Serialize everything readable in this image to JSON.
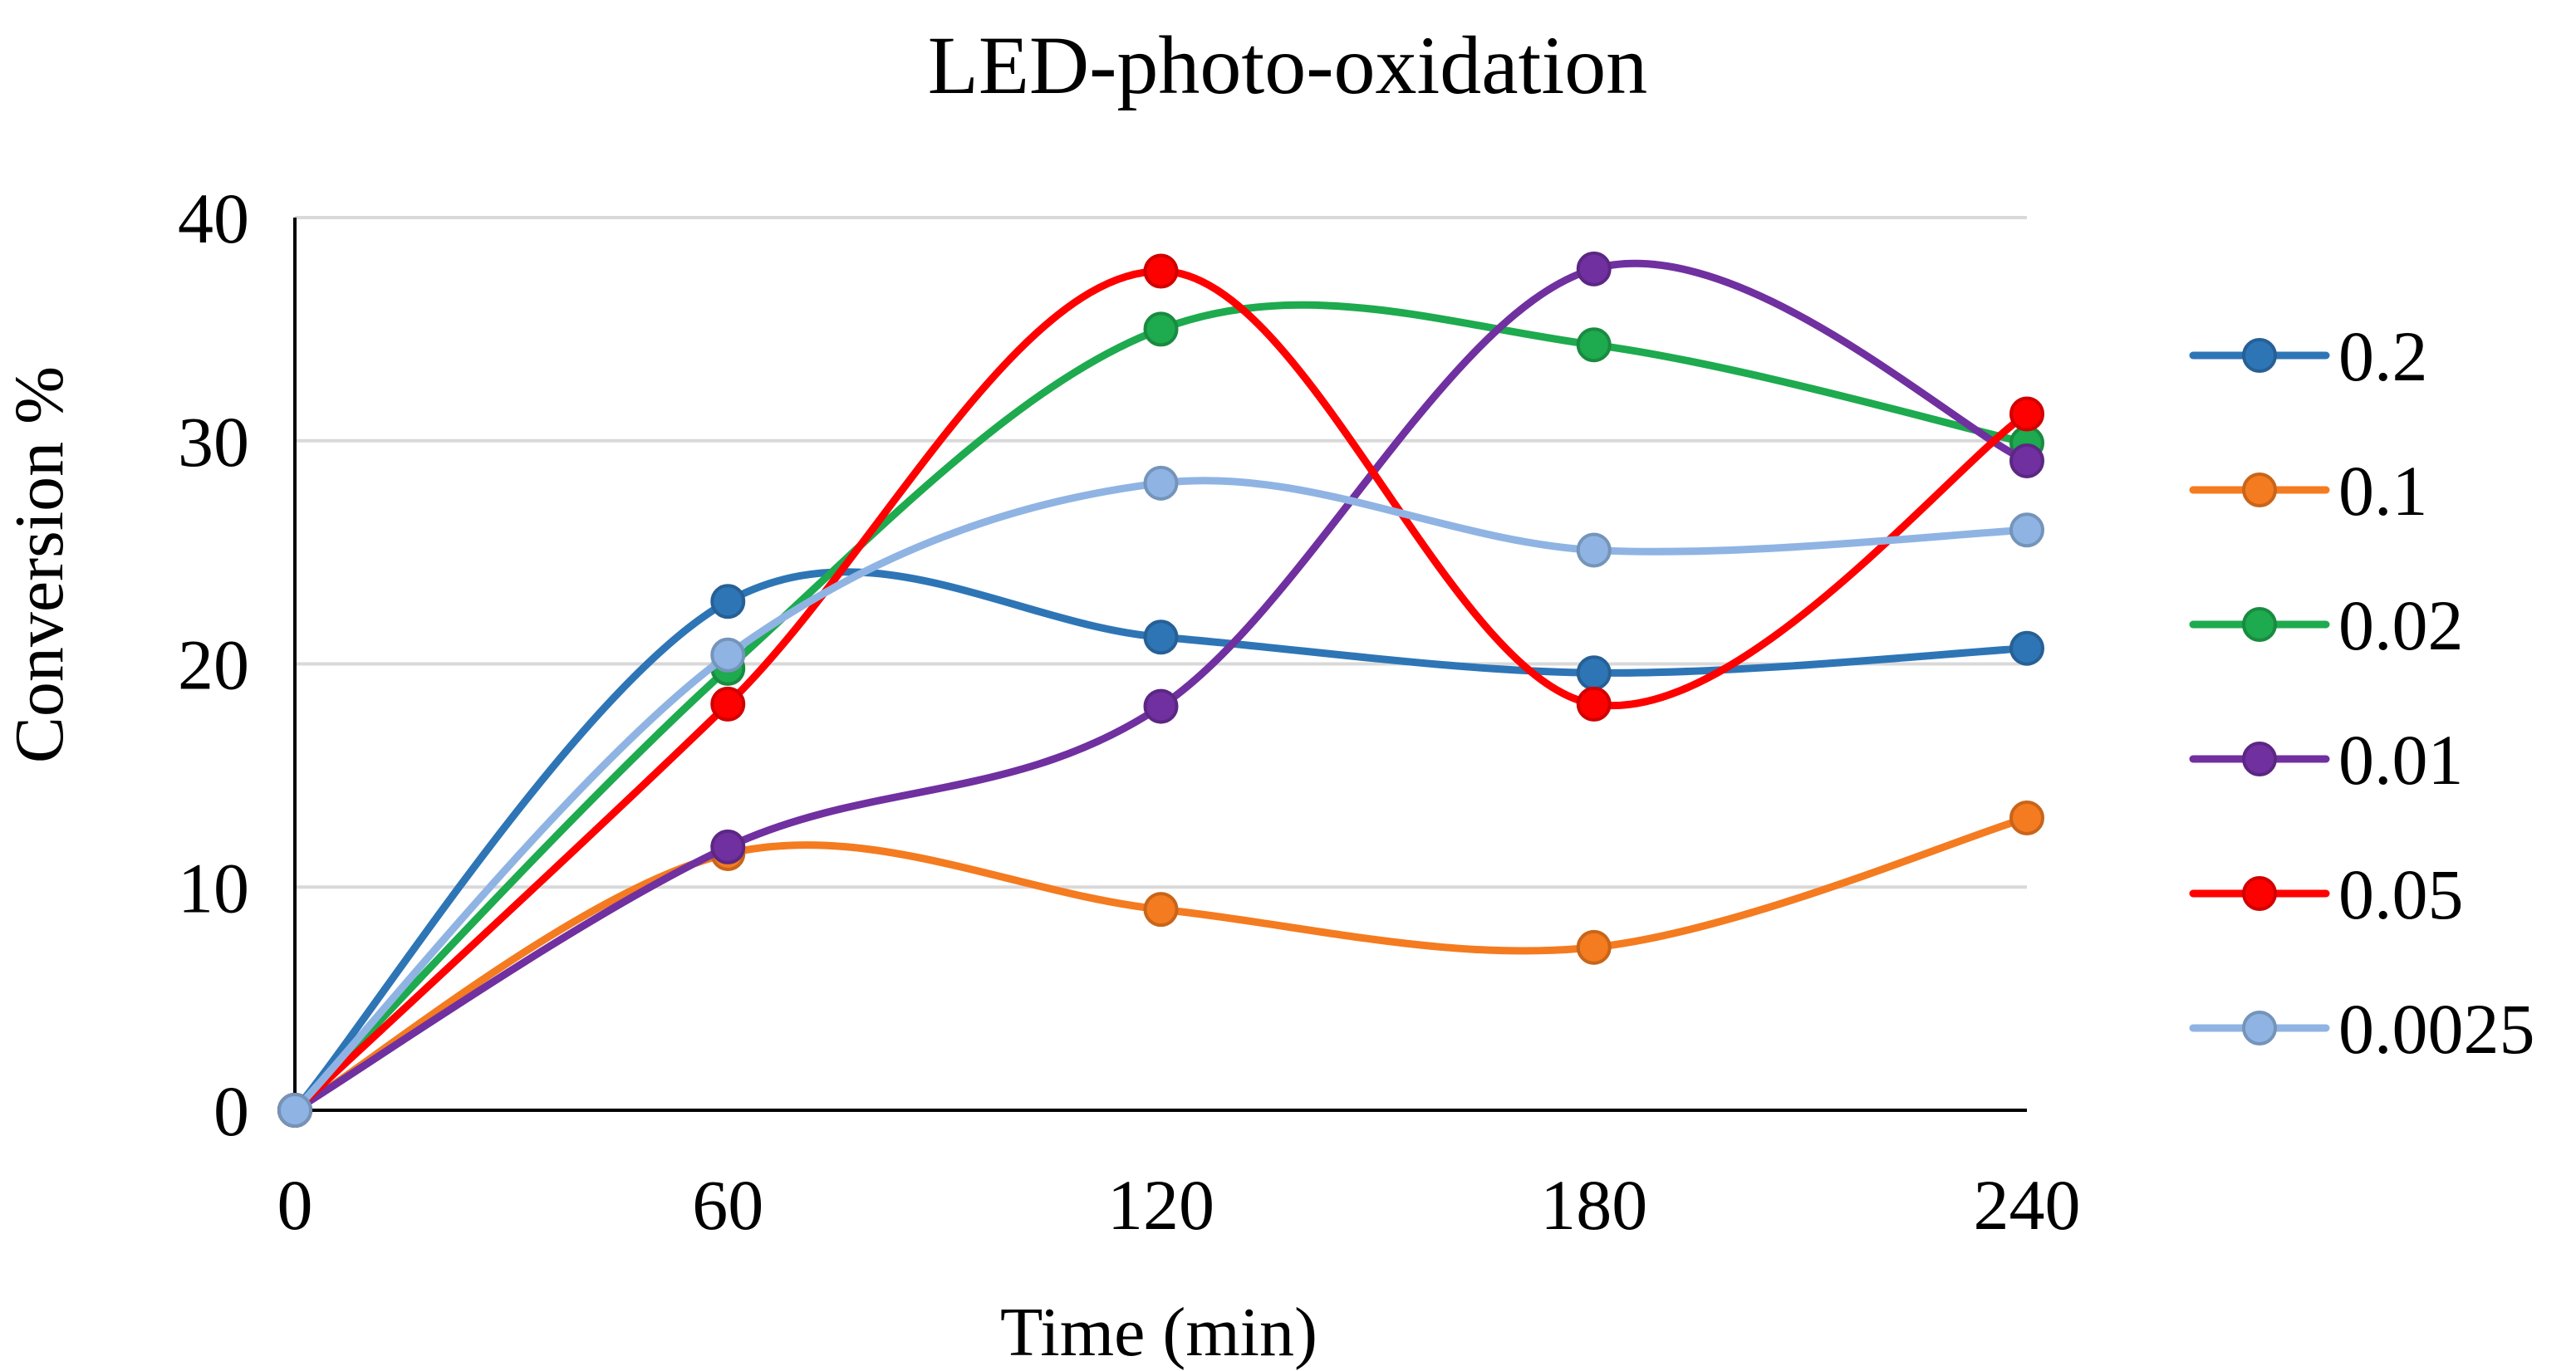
{
  "chart_data": {
    "type": "line",
    "title": "LED-photo-oxidation",
    "xlabel": "Time (min)",
    "ylabel": "Conversion %",
    "x": [
      0,
      60,
      120,
      180,
      240
    ],
    "xlim": [
      0,
      240
    ],
    "ylim": [
      0,
      40
    ],
    "xticks": [
      "0",
      "60",
      "120",
      "180",
      "240"
    ],
    "yticks": [
      "0",
      "10",
      "20",
      "30",
      "40"
    ],
    "grid": true,
    "legend_position": "right",
    "smooth": true,
    "series": [
      {
        "name": "0.2",
        "color": "#2E75B6",
        "values": [
          0,
          22.8,
          21.2,
          19.6,
          20.7
        ]
      },
      {
        "name": "0.1",
        "color": "#F47B20",
        "values": [
          0,
          11.5,
          9.0,
          7.3,
          13.1
        ]
      },
      {
        "name": "0.02",
        "color": "#1EAA4E",
        "values": [
          0,
          19.8,
          35.0,
          34.3,
          29.9
        ]
      },
      {
        "name": "0.01",
        "color": "#7030A0",
        "values": [
          0,
          11.8,
          18.1,
          37.7,
          29.1
        ]
      },
      {
        "name": "0.05",
        "color": "#FF0000",
        "values": [
          0,
          18.2,
          37.6,
          18.2,
          31.2
        ]
      },
      {
        "name": "0.0025",
        "color": "#8FB4E3",
        "values": [
          0,
          20.4,
          28.1,
          25.1,
          26.0
        ]
      }
    ]
  }
}
